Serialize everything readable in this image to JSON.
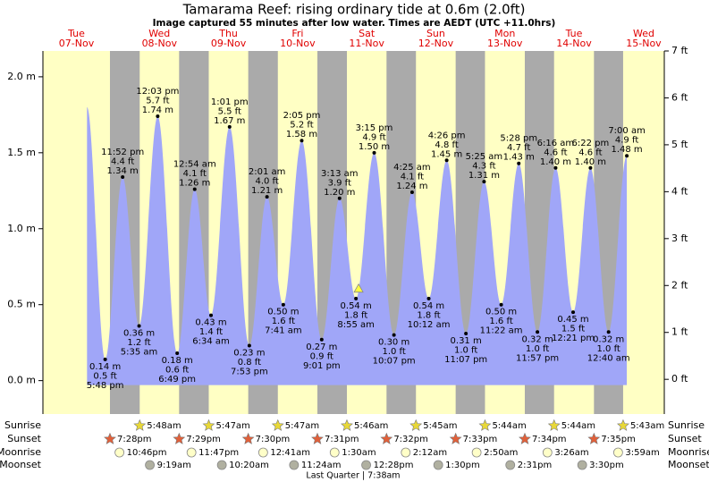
{
  "chart_data": {
    "type": "area",
    "title": "Tamarama Reef: rising  ordinary tide at 0.6m (2.0ft)",
    "subtitle": "Image captured 55 minutes after low water. Times are AEDT (UTC +11.0hrs)",
    "days": [
      {
        "name": "Tue",
        "date": "07-Nov"
      },
      {
        "name": "Wed",
        "date": "08-Nov"
      },
      {
        "name": "Thu",
        "date": "09-Nov"
      },
      {
        "name": "Fri",
        "date": "10-Nov"
      },
      {
        "name": "Sat",
        "date": "11-Nov"
      },
      {
        "name": "Sun",
        "date": "12-Nov"
      },
      {
        "name": "Mon",
        "date": "13-Nov"
      },
      {
        "name": "Tue",
        "date": "14-Nov"
      },
      {
        "name": "Wed",
        "date": "15-Nov"
      }
    ],
    "color": "#a0a6f8",
    "day_color": "#ffffc4",
    "night_color": "#aaaaaa",
    "x": [
      "07-Nov 11:30",
      "07-Nov 17:48",
      "07-Nov 23:52",
      "08-Nov 05:35",
      "08-Nov 12:03",
      "08-Nov 18:49",
      "09-Nov 00:54",
      "09-Nov 06:34",
      "09-Nov 13:01",
      "09-Nov 19:53",
      "10-Nov 02:01",
      "10-Nov 07:41",
      "10-Nov 14:05",
      "10-Nov 21:01",
      "11-Nov 03:13",
      "11-Nov 08:55",
      "11-Nov 15:15",
      "11-Nov 22:07",
      "12-Nov 04:25",
      "12-Nov 10:12",
      "12-Nov 16:26",
      "12-Nov 23:07",
      "13-Nov 05:25",
      "13-Nov 11:22",
      "13-Nov 17:28",
      "13-Nov 23:57",
      "14-Nov 06:16",
      "14-Nov 12:21",
      "14-Nov 18:22",
      "15-Nov 00:40",
      "15-Nov 07:00"
    ],
    "values": [
      1.8,
      0.14,
      1.34,
      0.36,
      1.74,
      0.18,
      1.26,
      0.43,
      1.67,
      0.23,
      1.21,
      0.5,
      1.58,
      0.27,
      1.2,
      0.54,
      1.5,
      0.3,
      1.24,
      0.54,
      1.45,
      0.31,
      1.31,
      0.5,
      1.43,
      0.32,
      1.4,
      0.45,
      1.4,
      0.32,
      1.48
    ],
    "value_labels": [
      null,
      "0.14 m",
      "1.34 m",
      "0.36 m",
      "1.74 m",
      "0.18 m",
      "1.26 m",
      "0.43 m",
      "1.67 m",
      "0.23 m",
      "1.21 m",
      "0.50 m",
      "1.58 m",
      "0.27 m",
      "1.20 m",
      "0.54 m",
      "1.50 m",
      "0.30 m",
      "1.24 m",
      "0.54 m",
      "1.45 m",
      "0.31 m",
      "1.31 m",
      "0.50 m",
      "1.43 m",
      "0.32 m",
      "1.40 m",
      "0.45 m",
      "1.40 m",
      "0.32 m",
      "1.48 m"
    ],
    "ft_labels": [
      null,
      "0.5 ft",
      "4.4 ft",
      "1.2 ft",
      "5.7 ft",
      "0.6 ft",
      "4.1 ft",
      "1.4 ft",
      "5.5 ft",
      "0.8 ft",
      "4.0 ft",
      "1.6 ft",
      "5.2 ft",
      "0.9 ft",
      "3.9 ft",
      "1.8 ft",
      "4.9 ft",
      "1.0 ft",
      "4.1 ft",
      "1.8 ft",
      "4.8 ft",
      "1.0 ft",
      "4.3 ft",
      "1.6 ft",
      "4.7 ft",
      "1.0 ft",
      "4.6 ft",
      "1.5 ft",
      "4.6 ft",
      "1.0 ft",
      "4.9 ft"
    ],
    "time_labels": [
      null,
      "5:48 pm",
      "11:52 pm",
      "5:35 am",
      "12:03 pm",
      "6:49 pm",
      "12:54 am",
      "6:34 am",
      "1:01 pm",
      "7:53 pm",
      "2:01 am",
      "7:41 am",
      "2:05 pm",
      "9:01 pm",
      "3:13 am",
      "8:55 am",
      "3:15 pm",
      "10:07 pm",
      "4:25 am",
      "10:12 am",
      "4:26 pm",
      "11:07 pm",
      "5:25 am",
      "11:22 am",
      "5:28 pm",
      "11:57 pm",
      "6:16 am",
      "12:21 pm",
      "6:22 pm",
      "12:40 am",
      "7:00 am"
    ],
    "ylim": [
      -0.22,
      2.17
    ],
    "yticks": [
      {
        "value": 0,
        "label": "0.0 m"
      },
      {
        "value": 0.5,
        "label": "0.5 m"
      },
      {
        "value": 1,
        "label": "1.0 m"
      },
      {
        "value": 1.5,
        "label": "1.5 m"
      },
      {
        "value": 2,
        "label": "2.0 m"
      }
    ],
    "y2lim": [
      -0.74,
      7.0
    ],
    "y2ticks": [
      {
        "value": 0,
        "label": "0 ft"
      },
      {
        "value": 1,
        "label": "1 ft"
      },
      {
        "value": 2,
        "label": "2 ft"
      },
      {
        "value": 3,
        "label": "3 ft"
      },
      {
        "value": 4,
        "label": "4 ft"
      },
      {
        "value": 5,
        "label": "5 ft"
      },
      {
        "value": 6,
        "label": "6 ft"
      },
      {
        "value": 7,
        "label": "7 ft"
      }
    ],
    "current": {
      "x": "11-Nov 09:50",
      "value": 0.6
    },
    "sunrise": {
      "label": "Sunrise",
      "color": "#e8d838",
      "events": [
        {
          "x": "08-Nov 05:48",
          "label": "5:48am"
        },
        {
          "x": "09-Nov 05:47",
          "label": "5:47am"
        },
        {
          "x": "10-Nov 05:47",
          "label": "5:47am"
        },
        {
          "x": "11-Nov 05:46",
          "label": "5:46am"
        },
        {
          "x": "12-Nov 05:45",
          "label": "5:45am"
        },
        {
          "x": "13-Nov 05:44",
          "label": "5:44am"
        },
        {
          "x": "14-Nov 05:44",
          "label": "5:44am"
        },
        {
          "x": "15-Nov 05:43",
          "label": "5:43am"
        }
      ]
    },
    "sunset": {
      "label": "Sunset",
      "color": "#e0603a",
      "events": [
        {
          "x": "07-Nov 19:28",
          "label": "7:28pm"
        },
        {
          "x": "08-Nov 19:29",
          "label": "7:29pm"
        },
        {
          "x": "09-Nov 19:30",
          "label": "7:30pm"
        },
        {
          "x": "10-Nov 19:31",
          "label": "7:31pm"
        },
        {
          "x": "11-Nov 19:32",
          "label": "7:32pm"
        },
        {
          "x": "12-Nov 19:33",
          "label": "7:33pm"
        },
        {
          "x": "13-Nov 19:34",
          "label": "7:34pm"
        },
        {
          "x": "14-Nov 19:35",
          "label": "7:35pm"
        }
      ]
    },
    "moonrise": {
      "label": "Moonrise",
      "color": "#ffffc8",
      "events": [
        {
          "x": "07-Nov 22:46",
          "label": "10:46pm"
        },
        {
          "x": "08-Nov 23:47",
          "label": "11:47pm"
        },
        {
          "x": "10-Nov 00:41",
          "label": "12:41am"
        },
        {
          "x": "11-Nov 01:30",
          "label": "1:30am"
        },
        {
          "x": "12-Nov 02:12",
          "label": "2:12am"
        },
        {
          "x": "13-Nov 02:50",
          "label": "2:50am"
        },
        {
          "x": "14-Nov 03:26",
          "label": "3:26am"
        },
        {
          "x": "15-Nov 03:59",
          "label": "3:59am"
        }
      ]
    },
    "moonset": {
      "label": "Moonset",
      "color": "#b0b0a0",
      "events": [
        {
          "x": "08-Nov 09:19",
          "label": "9:19am"
        },
        {
          "x": "09-Nov 10:20",
          "label": "10:20am"
        },
        {
          "x": "10-Nov 11:24",
          "label": "11:24am"
        },
        {
          "x": "11-Nov 12:28",
          "label": "12:28pm"
        },
        {
          "x": "12-Nov 13:30",
          "label": "1:30pm"
        },
        {
          "x": "13-Nov 14:31",
          "label": "2:31pm"
        },
        {
          "x": "14-Nov 15:30",
          "label": "3:30pm"
        }
      ]
    },
    "moon_phase": "Last Quarter | 7:38am"
  }
}
